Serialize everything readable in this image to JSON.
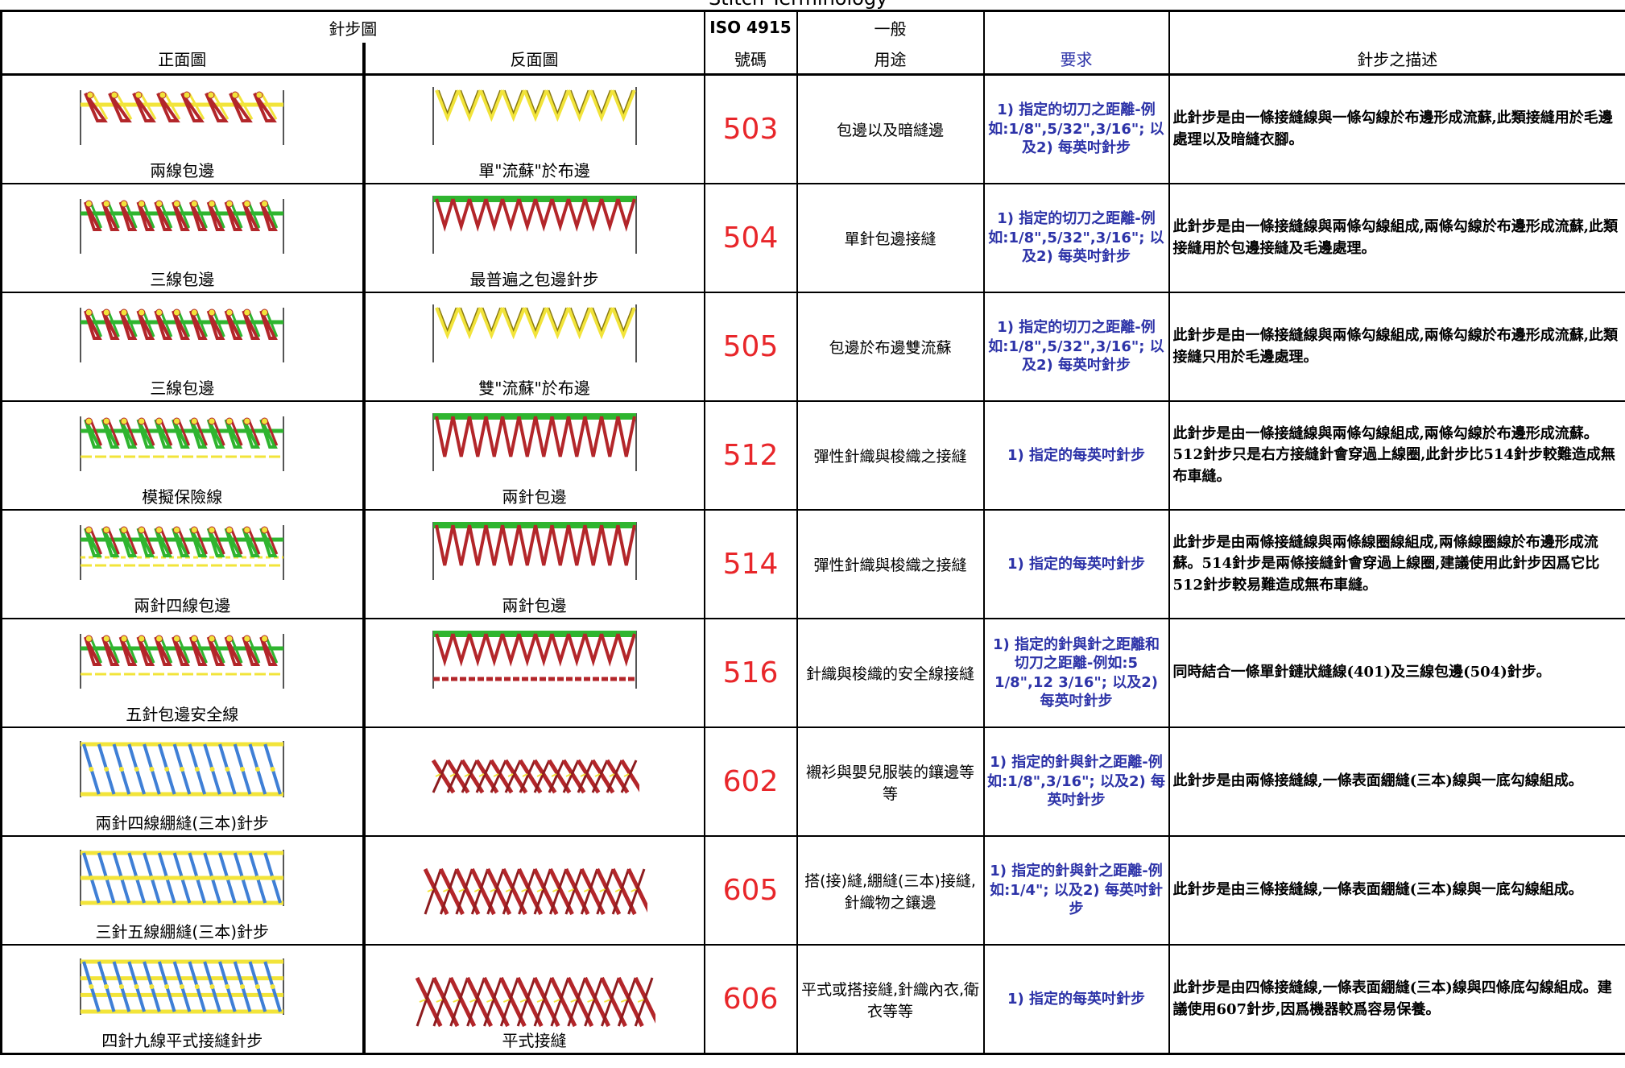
{
  "title": "Stitch Terminology",
  "header": {
    "stitch_diagram": "針步圖",
    "front": "正面圖",
    "back": "反面圖",
    "iso": "ISO 4915",
    "number": "號碼",
    "general": "一般",
    "use": "用途",
    "requirement": "要求",
    "description": "針步之描述"
  },
  "rows": [
    {
      "front": "兩線包邊",
      "back": "單\"流蘇\"於布邊",
      "code": 503,
      "use": "包邊以及暗縫邊",
      "requirement": "1) 指定的切刀之距離-例如:1/8\",5/32\",3/16\"; 以及2) 每英吋針步",
      "description": "此針步是由一條接縫線與一條勾線於布邊形成流蘇,此類接縫用於毛邊處理以及暗縫衣腳。"
    },
    {
      "front": "三線包邊",
      "back": "最普遍之包邊針步",
      "code": 504,
      "use": "單針包邊接縫",
      "requirement": "1) 指定的切刀之距離-例如:1/8\",5/32\",3/16\"; 以及2) 每英吋針步",
      "description": "此針步是由一條接縫線與兩條勾線組成,兩條勾線於布邊形成流蘇,此類接縫用於包邊接縫及毛邊處理。"
    },
    {
      "front": "三線包邊",
      "back": "雙\"流蘇\"於布邊",
      "code": 505,
      "use": "包邊於布邊雙流蘇",
      "requirement": "1) 指定的切刀之距離-例如:1/8\",5/32\",3/16\"; 以及2) 每英吋針步",
      "description": "此針步是由一條接縫線與兩條勾線組成,兩條勾線於布邊形成流蘇,此類接縫只用於毛邊處理。"
    },
    {
      "front": "模擬保險線",
      "back": "兩針包邊",
      "code": 512,
      "use": "彈性針織與梭織之接縫",
      "requirement": "1) 指定的每英吋針步",
      "description": "此針步是由一條接縫線與兩條勾線組成,兩條勾線於布邊形成流蘇。512針步只是右方接縫針會穿過上線圈,此針步比514針步較難造成無布車縫。"
    },
    {
      "front": "兩針四線包邊",
      "back": "兩針包邊",
      "code": 514,
      "use": "彈性針織與梭織之接縫",
      "requirement": "1) 指定的每英吋針步",
      "description": "此針步是由兩條接縫線與兩條線圈線組成,兩條線圈線於布邊形成流蘇。514針步是兩條接縫針會穿過上線圈,建議使用此針步因爲它比512針步較易難造成無布車縫。"
    },
    {
      "front": "五針包邊安全線",
      "code": 516,
      "use": "針織與梭織的安全線接縫",
      "requirement": "1) 指定的針與針之距離和切刀之距離-例如:5 1/8\",12 3/16\"; 以及2) 每英吋針步",
      "description": "同時結合一條單針鏈狀縫線(401)及三線包邊(504)針步。"
    },
    {
      "front": "兩針四線綳縫(三本)針步",
      "code": 602,
      "use": "襯衫與嬰兒服裝的鑲邊等等",
      "requirement": "1) 指定的針與針之距離-例如:1/8\",3/16\"; 以及2) 每英吋針步",
      "description": "此針步是由兩條接縫線,一條表面綳縫(三本)線與一底勾線組成。"
    },
    {
      "front": "三針五線綳縫(三本)針步",
      "code": 605,
      "use": "搭(接)縫,綳縫(三本)接縫,針織物之鑲邊",
      "requirement": "1) 指定的針與針之距離-例如:1/4\"; 以及2) 每英吋針步",
      "description": "此針步是由三條接縫線,一條表面綳縫(三本)線與一底勾線組成。"
    },
    {
      "front": "四針九線平式接縫針步",
      "back": "平式接縫",
      "code": 606,
      "use": "平式或搭接縫,針織內衣,衛衣等等",
      "requirement": "1) 指定的每英吋針步",
      "description": "此針步是由四條接縫線,一條表面綳縫(三本)線與四條底勾線組成。建議使用607針步,因爲機器較爲容易保養。"
    }
  ]
}
